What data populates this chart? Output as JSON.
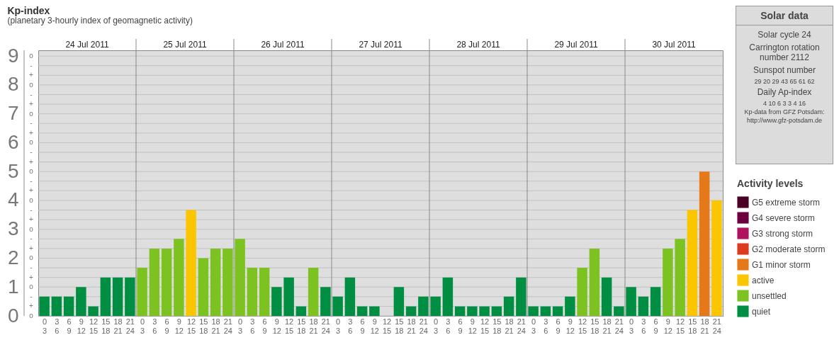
{
  "chart_data": [
    {
      "type": "bar",
      "title": "Kp-index",
      "subtitle": "(planetary 3-hourly index of geomagnetic activity)",
      "legend_title": "Activity levels",
      "legend": "right",
      "grid": true,
      "categories": [
        "0 3",
        "3 6",
        "6 9",
        "9 12",
        "12 15",
        "15 18",
        "18 21",
        "21 24",
        "0 3",
        "3 6",
        "6 9",
        "9 12",
        "12 15",
        "15 18",
        "18 21",
        "21 24",
        "0 3",
        "3 6",
        "6 9",
        "9 12",
        "12 15",
        "15 18",
        "18 21",
        "21 24",
        "0 3",
        "3 6",
        "6 9",
        "9 12",
        "12 15",
        "15 18",
        "18 21",
        "21 24",
        "0 3",
        "3 6",
        "6 9",
        "9 12",
        "12 15",
        "15 18",
        "18 21",
        "21 24",
        "0 3",
        "3 6",
        "6 9",
        "9 12",
        "12 15",
        "15 18",
        "18 21",
        "21 24",
        "0 3",
        "3 6",
        "6 9",
        "9 12",
        "12 15",
        "15 18",
        "18 21",
        "21 24"
      ],
      "annotations": [
        "24 Jul 2011",
        "25 Jul 2011",
        "26 Jul 2011",
        "27 Jul 2011",
        "28 Jul 2011",
        "29 Jul 2011",
        "30 Jul 2011",
        "o",
        "+",
        "-",
        "o",
        "+",
        "-",
        "o",
        "+",
        "-",
        "o",
        "+",
        "-",
        "o",
        "+",
        "-",
        "o",
        "+",
        "-",
        "o",
        "+",
        "-",
        "o",
        "+",
        "-",
        "o",
        "+",
        "-",
        "o"
      ],
      "ylim": [
        0,
        9.2
      ],
      "yticks": [
        0,
        1,
        2,
        3,
        4,
        5,
        6,
        7,
        8,
        9
      ],
      "series": [
        {
          "name": "G5 extreme storm",
          "color": "#4a0024",
          "values": [
            null,
            null,
            null,
            null,
            null,
            null,
            null,
            null,
            null,
            null,
            null,
            null,
            null,
            null,
            null,
            null,
            null,
            null,
            null,
            null,
            null,
            null,
            null,
            null,
            null,
            null,
            null,
            null,
            null,
            null,
            null,
            null,
            null,
            null,
            null,
            null,
            null,
            null,
            null,
            null,
            null,
            null,
            null,
            null,
            null,
            null,
            null,
            null,
            null,
            null,
            null,
            null,
            null,
            null,
            null,
            null
          ]
        },
        {
          "name": "G4 severe storm",
          "color": "#6e0040",
          "values": [
            null,
            null,
            null,
            null,
            null,
            null,
            null,
            null,
            null,
            null,
            null,
            null,
            null,
            null,
            null,
            null,
            null,
            null,
            null,
            null,
            null,
            null,
            null,
            null,
            null,
            null,
            null,
            null,
            null,
            null,
            null,
            null,
            null,
            null,
            null,
            null,
            null,
            null,
            null,
            null,
            null,
            null,
            null,
            null,
            null,
            null,
            null,
            null,
            null,
            null,
            null,
            null,
            null,
            null,
            null,
            null
          ]
        },
        {
          "name": "G3 strong storm",
          "color": "#b0125e",
          "values": [
            null,
            null,
            null,
            null,
            null,
            null,
            null,
            null,
            null,
            null,
            null,
            null,
            null,
            null,
            null,
            null,
            null,
            null,
            null,
            null,
            null,
            null,
            null,
            null,
            null,
            null,
            null,
            null,
            null,
            null,
            null,
            null,
            null,
            null,
            null,
            null,
            null,
            null,
            null,
            null,
            null,
            null,
            null,
            null,
            null,
            null,
            null,
            null,
            null,
            null,
            null,
            null,
            null,
            null,
            null,
            null
          ]
        },
        {
          "name": "G2 moderate storm",
          "color": "#e03a1e",
          "values": [
            null,
            null,
            null,
            null,
            null,
            null,
            null,
            null,
            null,
            null,
            null,
            null,
            null,
            null,
            null,
            null,
            null,
            null,
            null,
            null,
            null,
            null,
            null,
            null,
            null,
            null,
            null,
            null,
            null,
            null,
            null,
            null,
            null,
            null,
            null,
            null,
            null,
            null,
            null,
            null,
            null,
            null,
            null,
            null,
            null,
            null,
            null,
            null,
            null,
            null,
            null,
            null,
            null,
            null,
            null,
            null
          ]
        },
        {
          "name": "G1 minor storm",
          "color": "#e67817",
          "values": [
            null,
            null,
            null,
            null,
            null,
            null,
            null,
            null,
            null,
            null,
            null,
            null,
            null,
            null,
            null,
            null,
            null,
            null,
            null,
            null,
            null,
            null,
            null,
            null,
            null,
            null,
            null,
            null,
            null,
            null,
            null,
            null,
            null,
            null,
            null,
            null,
            null,
            null,
            null,
            null,
            null,
            null,
            null,
            null,
            null,
            null,
            null,
            null,
            null,
            null,
            null,
            null,
            null,
            null,
            5,
            null
          ]
        },
        {
          "name": "active",
          "color": "#fbc500",
          "values": [
            null,
            null,
            null,
            null,
            null,
            null,
            null,
            null,
            null,
            null,
            null,
            null,
            3.67,
            null,
            null,
            null,
            null,
            null,
            null,
            null,
            null,
            null,
            null,
            null,
            null,
            null,
            null,
            null,
            null,
            null,
            null,
            null,
            null,
            null,
            null,
            null,
            null,
            null,
            null,
            null,
            null,
            null,
            null,
            null,
            null,
            null,
            null,
            null,
            null,
            null,
            null,
            null,
            null,
            3.67,
            null,
            4
          ]
        },
        {
          "name": "unsettled",
          "color": "#7cc321",
          "values": [
            null,
            null,
            null,
            null,
            null,
            null,
            null,
            null,
            1.67,
            2.33,
            2.33,
            2.67,
            null,
            2,
            2.33,
            2.33,
            2.67,
            1.67,
            1.67,
            null,
            null,
            null,
            1.67,
            null,
            null,
            null,
            null,
            null,
            null,
            null,
            null,
            null,
            null,
            null,
            null,
            null,
            null,
            null,
            null,
            null,
            null,
            null,
            null,
            null,
            1.67,
            2.33,
            null,
            null,
            null,
            null,
            null,
            2.33,
            2.67,
            null,
            null,
            null
          ]
        },
        {
          "name": "quiet",
          "color": "#008f42",
          "values": [
            0.67,
            0.67,
            0.67,
            1,
            0.33,
            1.33,
            1.33,
            1.33,
            null,
            null,
            null,
            null,
            null,
            null,
            null,
            null,
            null,
            null,
            null,
            1,
            1.33,
            0.33,
            null,
            1,
            0.67,
            1.33,
            0.33,
            0.33,
            0,
            1,
            0.33,
            0.67,
            0.67,
            1.33,
            0.33,
            0.33,
            0.33,
            0.33,
            0.67,
            1.33,
            0.33,
            0.33,
            0.33,
            0.67,
            null,
            null,
            1.33,
            0.33,
            1,
            0.67,
            1,
            null,
            null,
            null,
            null,
            null
          ]
        }
      ]
    },
    {
      "type": "other",
      "title": "Solar data",
      "annotations": [
        "Solar cycle 24",
        "Carrington rotation number 2112",
        "Sunspot number",
        "29 20 29 43 65 61 62",
        "Daily Ap-index",
        "4 10 6 3 3 4 16",
        "Kp-data from GFZ Potsdam:",
        "http://www.gfz-potsdam.de"
      ]
    }
  ]
}
